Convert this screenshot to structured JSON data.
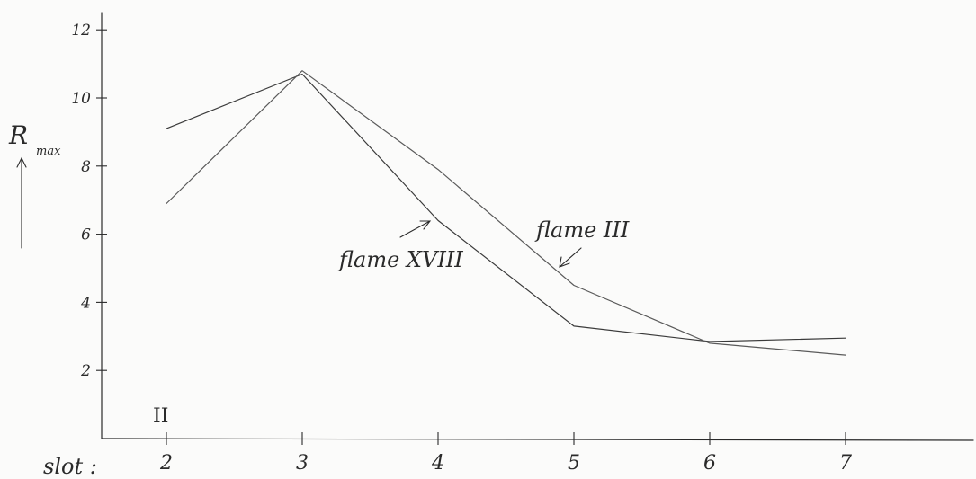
{
  "chart_data": {
    "type": "line",
    "x_axis_label": "slot :",
    "y_axis_label": {
      "main": "R",
      "subscript": "max"
    },
    "categories": [
      2,
      3,
      4,
      5,
      6,
      7
    ],
    "ylim": [
      0,
      12
    ],
    "y_ticks": [
      2,
      4,
      6,
      8,
      10,
      12
    ],
    "grid": false,
    "panel_label": "II",
    "colors": {
      "axis": "#2a2a2a",
      "series_a": "#3a3a3a",
      "series_b": "#5a5a5a"
    },
    "series": [
      {
        "name": "flame XVIII",
        "values": [
          9.1,
          10.7,
          6.4,
          3.3,
          2.85,
          2.95
        ]
      },
      {
        "name": "flame III",
        "values": [
          6.9,
          10.8,
          7.9,
          4.5,
          2.8,
          2.45
        ]
      }
    ]
  }
}
